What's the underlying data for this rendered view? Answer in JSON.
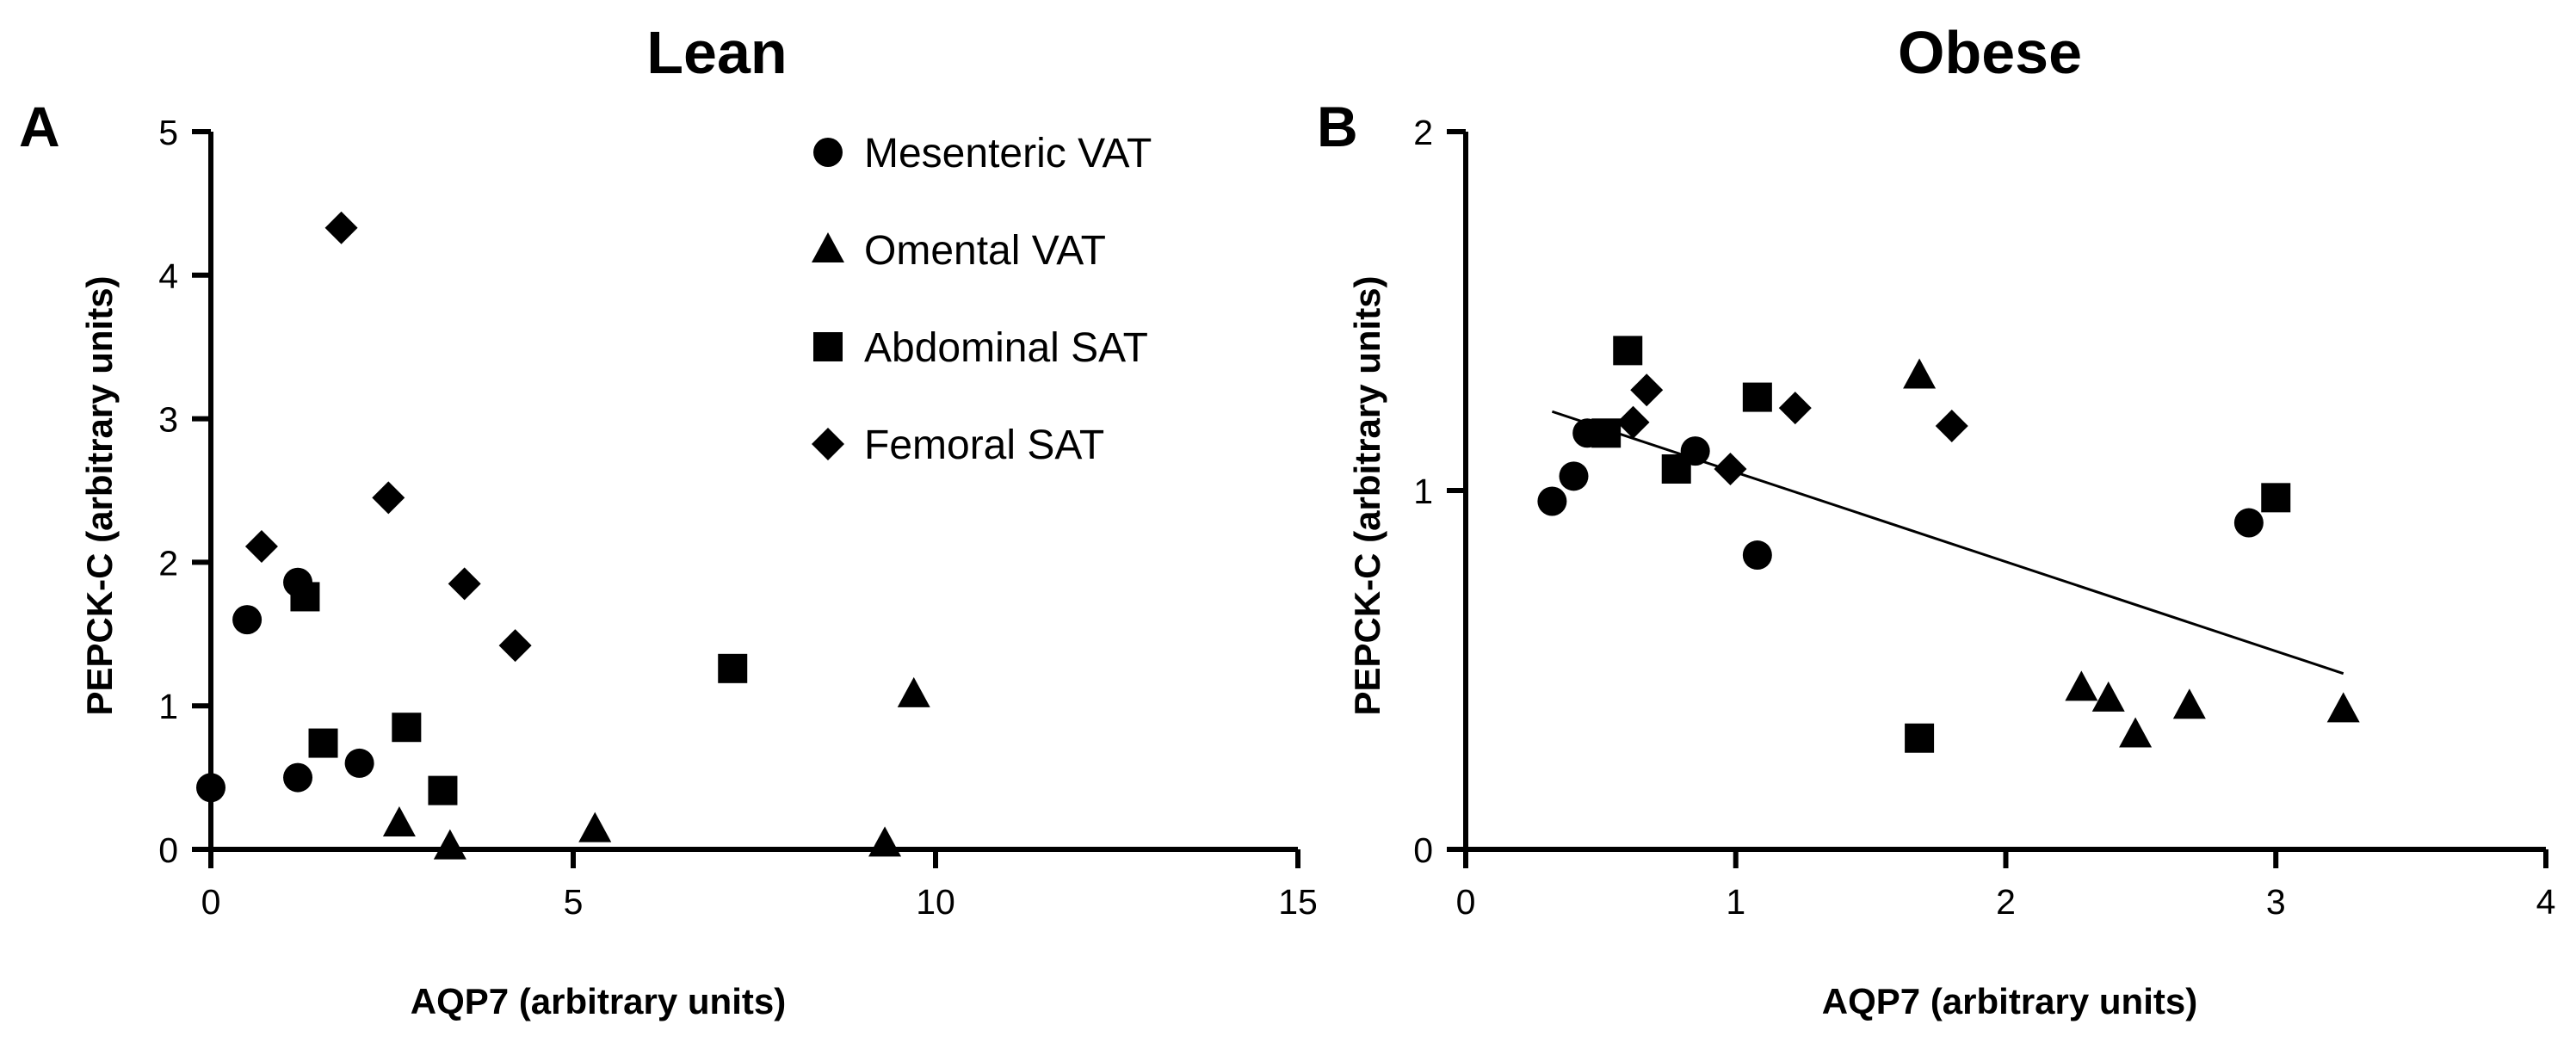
{
  "chart_data": [
    {
      "type": "scatter",
      "panel": "A",
      "title": "Lean",
      "xlabel": "AQP7 (arbitrary units)",
      "ylabel": "PEPCK-C (arbitrary units)",
      "xlim": [
        0,
        15
      ],
      "ylim": [
        0,
        5
      ],
      "xticks": [
        0,
        5,
        10,
        15
      ],
      "yticks": [
        0,
        1,
        2,
        3,
        4,
        5
      ],
      "legend_position": "top-right",
      "trendline": null,
      "series": [
        {
          "name": "Mesenteric VAT",
          "marker": "circle",
          "x": [
            0.0,
            0.5,
            1.2,
            1.2,
            2.05
          ],
          "y": [
            0.43,
            1.6,
            1.86,
            0.5,
            0.6
          ]
        },
        {
          "name": "Omental VAT",
          "marker": "triangle",
          "x": [
            2.6,
            3.3,
            5.3,
            9.3,
            9.7
          ],
          "y": [
            0.18,
            0.02,
            0.14,
            0.04,
            1.08
          ]
        },
        {
          "name": "Abdominal SAT",
          "marker": "square",
          "x": [
            1.3,
            1.55,
            2.7,
            3.2,
            7.2
          ],
          "y": [
            1.76,
            0.74,
            0.85,
            0.41,
            1.26
          ]
        },
        {
          "name": "Femoral SAT",
          "marker": "diamond",
          "x": [
            0.7,
            1.8,
            2.45,
            3.5,
            4.2
          ],
          "y": [
            2.11,
            4.33,
            2.45,
            1.85,
            1.42
          ]
        }
      ]
    },
    {
      "type": "scatter",
      "panel": "B",
      "title": "Obese",
      "xlabel": "AQP7 (arbitrary units)",
      "ylabel": "PEPCK-C (arbitrary units)",
      "xlim": [
        0,
        4
      ],
      "ylim": [
        0,
        2
      ],
      "xticks": [
        0,
        1,
        2,
        3,
        4
      ],
      "yticks": [
        0,
        1,
        2
      ],
      "trendline": {
        "x": [
          0.32,
          3.25
        ],
        "y": [
          1.22,
          0.49
        ]
      },
      "series": [
        {
          "name": "Mesenteric VAT",
          "marker": "circle",
          "x": [
            0.32,
            0.4,
            0.45,
            0.85,
            1.08,
            2.9
          ],
          "y": [
            0.97,
            1.04,
            1.16,
            1.11,
            0.82,
            0.91
          ]
        },
        {
          "name": "Omental VAT",
          "marker": "triangle",
          "x": [
            1.68,
            2.28,
            2.38,
            2.48,
            2.68,
            3.25
          ],
          "y": [
            1.32,
            0.45,
            0.42,
            0.32,
            0.4,
            0.39
          ]
        },
        {
          "name": "Abdominal SAT",
          "marker": "square",
          "x": [
            0.52,
            0.6,
            0.78,
            1.08,
            1.68,
            3.0
          ],
          "y": [
            1.16,
            1.39,
            1.06,
            1.26,
            0.31,
            0.98
          ]
        },
        {
          "name": "Femoral SAT",
          "marker": "diamond",
          "x": [
            0.62,
            0.67,
            0.98,
            1.22,
            1.8
          ],
          "y": [
            1.19,
            1.28,
            1.06,
            1.23,
            1.18
          ]
        }
      ]
    }
  ]
}
